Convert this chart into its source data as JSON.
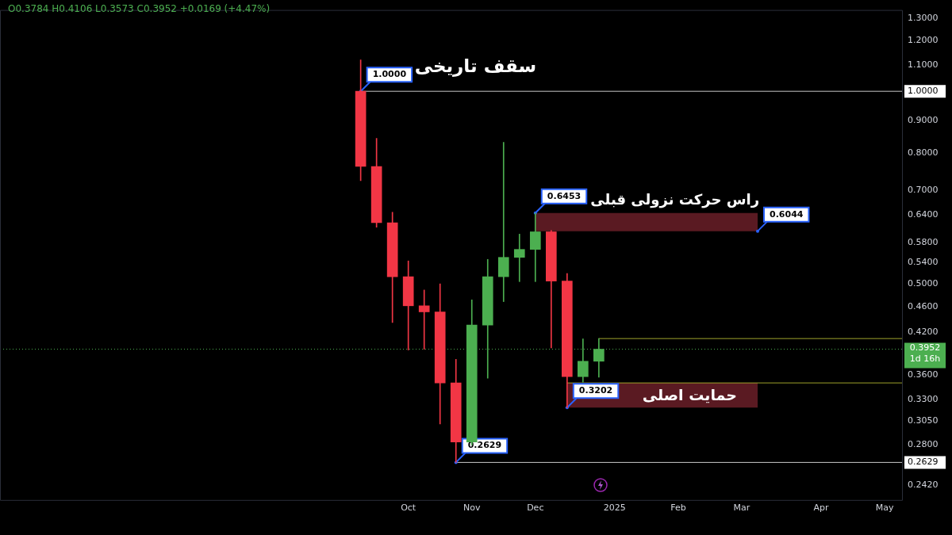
{
  "chart_data": {
    "type": "candlestick",
    "subtitle": "O0.3784 H0.4106 L0.3573 C0.3952 +0.0169 (+4.47%)",
    "x": [
      "2024-09-16",
      "2024-09-23",
      "2024-09-30",
      "2024-10-07",
      "2024-10-14",
      "2024-10-21",
      "2024-10-28",
      "2024-11-04",
      "2024-11-11",
      "2024-11-18",
      "2024-11-25",
      "2024-12-02",
      "2024-12-09",
      "2024-12-16",
      "2024-12-23",
      "2024-12-30"
    ],
    "ohlc": [
      [
        1.0,
        1.12,
        0.725,
        0.763
      ],
      [
        0.763,
        0.844,
        0.613,
        0.623
      ],
      [
        0.623,
        0.647,
        0.435,
        0.513
      ],
      [
        0.513,
        0.543,
        0.394,
        0.462
      ],
      [
        0.462,
        0.489,
        0.395,
        0.452
      ],
      [
        0.452,
        0.5,
        0.302,
        0.35
      ],
      [
        0.35,
        0.381,
        0.2629,
        0.283
      ],
      [
        0.283,
        0.472,
        0.28,
        0.431
      ],
      [
        0.431,
        0.546,
        0.356,
        0.513
      ],
      [
        0.513,
        0.832,
        0.469,
        0.55
      ],
      [
        0.55,
        0.598,
        0.504,
        0.566
      ],
      [
        0.566,
        0.6453,
        0.504,
        0.603
      ],
      [
        0.603,
        0.606,
        0.397,
        0.505
      ],
      [
        0.505,
        0.519,
        0.3202,
        0.358
      ],
      [
        0.358,
        0.41,
        0.351,
        0.3784
      ],
      [
        0.3784,
        0.4106,
        0.3573,
        0.3952
      ]
    ],
    "colors": [
      "#f23645",
      "#f23645",
      "#f23645",
      "#f23645",
      "#f23645",
      "#f23645",
      "#f23645",
      "#4caf50",
      "#4caf50",
      "#4caf50",
      "#4caf50",
      "#4caf50",
      "#f23645",
      "#f23645",
      "#4caf50",
      "#4caf50"
    ],
    "log": "y",
    "grid": false,
    "legend": false,
    "xlim": [
      "2024-04-10",
      "2025-05-13"
    ],
    "xticks": [
      {
        "value": "2024-10-07",
        "label": "Oct"
      },
      {
        "value": "2024-11-04",
        "label": "Nov"
      },
      {
        "value": "2024-12-02",
        "label": "Dec"
      },
      {
        "value": "2025-01-06",
        "label": "2025"
      },
      {
        "value": "2025-02-03",
        "label": "Feb"
      },
      {
        "value": "2025-03-03",
        "label": "Mar"
      },
      {
        "value": "2025-04-07",
        "label": "Apr"
      },
      {
        "value": "2025-05-05",
        "label": "May"
      }
    ],
    "ylim": [
      0.229,
      1.34
    ],
    "yticks": [
      {
        "value": 0.242,
        "label": "0.2420"
      },
      {
        "value": 0.2629,
        "label": "0.2629"
      },
      {
        "value": 0.28,
        "label": "0.2800"
      },
      {
        "value": 0.305,
        "label": "0.3050"
      },
      {
        "value": 0.33,
        "label": "0.3300"
      },
      {
        "value": 0.36,
        "label": "0.3600"
      },
      {
        "value": 0.42,
        "label": "0.4200"
      },
      {
        "value": 0.46,
        "label": "0.4600"
      },
      {
        "value": 0.5,
        "label": "0.5000"
      },
      {
        "value": 0.54,
        "label": "0.5400"
      },
      {
        "value": 0.58,
        "label": "0.5800"
      },
      {
        "value": 0.64,
        "label": "0.6400"
      },
      {
        "value": 0.7,
        "label": "0.7000"
      },
      {
        "value": 0.8,
        "label": "0.8000"
      },
      {
        "value": 0.9,
        "label": "0.9000"
      },
      {
        "value": 1.0,
        "label": "1.0000"
      },
      {
        "value": 1.1,
        "label": "1.1000"
      },
      {
        "value": 1.2,
        "label": "1.2000"
      },
      {
        "value": 1.3,
        "label": "1.3000"
      }
    ],
    "ref_lines": [
      {
        "axis": "y",
        "value": 1.0,
        "label": "سقف تاریخی",
        "color": "#c8c8c8"
      },
      {
        "axis": "y",
        "value": 0.2629,
        "color": "#c8c8c8"
      },
      {
        "axis": "y",
        "value": 0.4106,
        "color": "#9ea12a"
      },
      {
        "axis": "y",
        "value": 0.35,
        "color": "#9ea12a"
      },
      {
        "axis": "y",
        "value": 0.3952,
        "label": "0.3952\n1d 16h",
        "color": "#4caf50",
        "line_style": "dotted"
      }
    ],
    "bands": [
      {
        "axis": "y",
        "from": 0.6044,
        "to": 0.6453,
        "label": "راس حرکت نزولی قبلی",
        "color": "#5a1a22"
      },
      {
        "axis": "y",
        "from": 0.3202,
        "to": 0.35,
        "label": "حمایت اصلی",
        "color": "#5a1a22"
      }
    ],
    "annotations": [
      {
        "text": "1.0000",
        "x": "2024-09-16",
        "y": 1.0
      },
      {
        "text": "0.6453",
        "x": "2024-12-02",
        "y": 0.6453
      },
      {
        "text": "0.6044",
        "x": "2025-03-10",
        "y": 0.6044
      },
      {
        "text": "0.3202",
        "x": "2024-12-16",
        "y": 0.3202
      },
      {
        "text": "0.2629",
        "x": "2024-10-28",
        "y": 0.2629
      }
    ]
  }
}
